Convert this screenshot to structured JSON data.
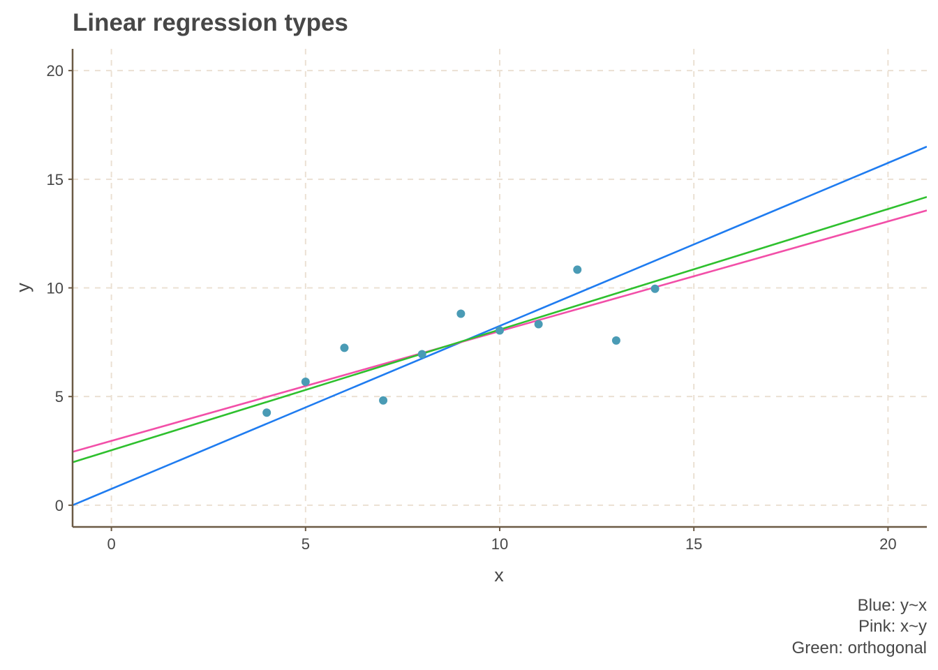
{
  "chart_data": {
    "type": "scatter",
    "title": "Linear regression types",
    "xlabel": "x",
    "ylabel": "y",
    "xlim": [
      -1,
      21
    ],
    "ylim": [
      -1,
      21
    ],
    "x_ticks": [
      0,
      5,
      10,
      15,
      20
    ],
    "y_ticks": [
      0,
      5,
      10,
      15,
      20
    ],
    "grid": true,
    "caption": [
      "Blue: y~x",
      "Pink: x~y",
      "Green: orthogonal"
    ],
    "points": {
      "color": "#4A9BB5",
      "x": [
        4,
        5,
        6,
        7,
        8,
        9,
        10,
        11,
        12,
        13,
        14
      ],
      "y": [
        4.26,
        5.68,
        7.24,
        4.82,
        6.95,
        8.81,
        8.04,
        8.33,
        10.84,
        7.58,
        9.96
      ]
    },
    "lines": [
      {
        "name": "Blue: y~x",
        "color": "#1F7CF0",
        "intercept": 0.75,
        "slope": 0.75
      },
      {
        "name": "Pink: x~y",
        "color": "#F24FA8",
        "intercept": 2.96,
        "slope": 0.505
      },
      {
        "name": "Green: orthogonal",
        "color": "#2EC02E",
        "intercept": 2.53,
        "slope": 0.555
      }
    ]
  },
  "colors": {
    "axis": "#6B5A45",
    "grid": "#EBE0D3",
    "text": "#474747"
  }
}
